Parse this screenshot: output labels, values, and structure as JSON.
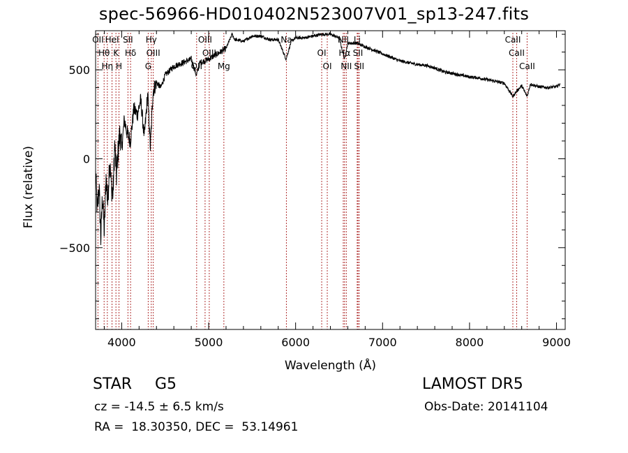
{
  "title": "spec-56966-HD010402N523007V01_sp13-247.fits",
  "info": {
    "object_class": "STAR",
    "subclass": "G5",
    "survey": "LAMOST DR5",
    "redshift": "cz = -14.5 ± 6.5 km/s",
    "obs_date": "Obs-Date: 20141104",
    "coords": "RA =  18.30350, DEC =  53.14961"
  },
  "chart_data": {
    "type": "line",
    "title": "spec-56966-HD010402N523007V01_sp13-247.fits",
    "xlabel": "Wavelength (Å)",
    "ylabel": "Flux (relative)",
    "xlim": [
      3700,
      9100
    ],
    "ylim": [
      -960,
      720
    ],
    "xticks": [
      4000,
      5000,
      6000,
      7000,
      8000,
      9000
    ],
    "yticks": [
      -500,
      0,
      500
    ],
    "grid": false,
    "line_color": "#000000",
    "marker_color": "#b03030",
    "series": [
      {
        "x": [
          3700,
          3720,
          3740,
          3760,
          3780,
          3800,
          3820,
          3840,
          3860,
          3880,
          3900,
          3920,
          3940,
          3960,
          3980,
          4000,
          4030,
          4060,
          4100,
          4140,
          4180,
          4220,
          4260,
          4300,
          4330,
          4360,
          4400,
          4450,
          4500,
          4600,
          4700,
          4800,
          4860,
          4900,
          5000,
          5100,
          5200,
          5270,
          5300,
          5400,
          5500,
          5600,
          5700,
          5800,
          5890,
          5950,
          6000,
          6100,
          6200,
          6300,
          6400,
          6500,
          6563,
          6600,
          6700,
          6800,
          6900,
          7000,
          7100,
          7200,
          7300,
          7400,
          7500,
          7600,
          7700,
          7800,
          7900,
          8000,
          8100,
          8200,
          8300,
          8400,
          8498,
          8542,
          8600,
          8662,
          8700,
          8800,
          8900,
          9000,
          9040
        ],
        "y": [
          -80,
          -300,
          -150,
          -450,
          -200,
          -420,
          -100,
          -250,
          0,
          -150,
          -200,
          80,
          -100,
          50,
          150,
          50,
          220,
          150,
          100,
          280,
          250,
          330,
          120,
          370,
          60,
          380,
          430,
          400,
          470,
          520,
          540,
          560,
          470,
          540,
          560,
          590,
          620,
          700,
          670,
          660,
          690,
          690,
          670,
          670,
          560,
          660,
          680,
          680,
          690,
          700,
          700,
          680,
          560,
          650,
          650,
          630,
          610,
          590,
          570,
          550,
          540,
          530,
          525,
          510,
          490,
          480,
          470,
          460,
          455,
          445,
          435,
          425,
          350,
          380,
          410,
          350,
          420,
          405,
          400,
          405,
          420
        ]
      }
    ],
    "lines": [
      {
        "label": "OII",
        "wavelength": 3727
      },
      {
        "label": "Hθ",
        "wavelength": 3798
      },
      {
        "label": "Hη",
        "wavelength": 3835
      },
      {
        "label": "HeI",
        "wavelength": 3889
      },
      {
        "label": "K",
        "wavelength": 3934
      },
      {
        "label": "H",
        "wavelength": 3969
      },
      {
        "label": "SII",
        "wavelength": 4072
      },
      {
        "label": "Hδ",
        "wavelength": 4102
      },
      {
        "label": "G",
        "wavelength": 4305
      },
      {
        "label": "Hγ",
        "wavelength": 4340
      },
      {
        "label": "OIII",
        "wavelength": 4363
      },
      {
        "label": "OII",
        "wavelength": 4862
      },
      {
        "label": "OIII",
        "wavelength": 4959
      },
      {
        "label": "OIII",
        "wavelength": 5007
      },
      {
        "label": "Mg",
        "wavelength": 5175
      },
      {
        "label": "Na",
        "wavelength": 5894
      },
      {
        "label": "OI",
        "wavelength": 6300
      },
      {
        "label": "OI",
        "wavelength": 6364
      },
      {
        "label": "NII",
        "wavelength": 6548
      },
      {
        "label": "Hα",
        "wavelength": 6563
      },
      {
        "label": "NII",
        "wavelength": 6583
      },
      {
        "label": "Li",
        "wavelength": 6708
      },
      {
        "label": "SII",
        "wavelength": 6717
      },
      {
        "label": "SII",
        "wavelength": 6731
      },
      {
        "label": "CaII",
        "wavelength": 8498
      },
      {
        "label": "CaII",
        "wavelength": 8542
      },
      {
        "label": "CaII",
        "wavelength": 8662
      }
    ]
  }
}
